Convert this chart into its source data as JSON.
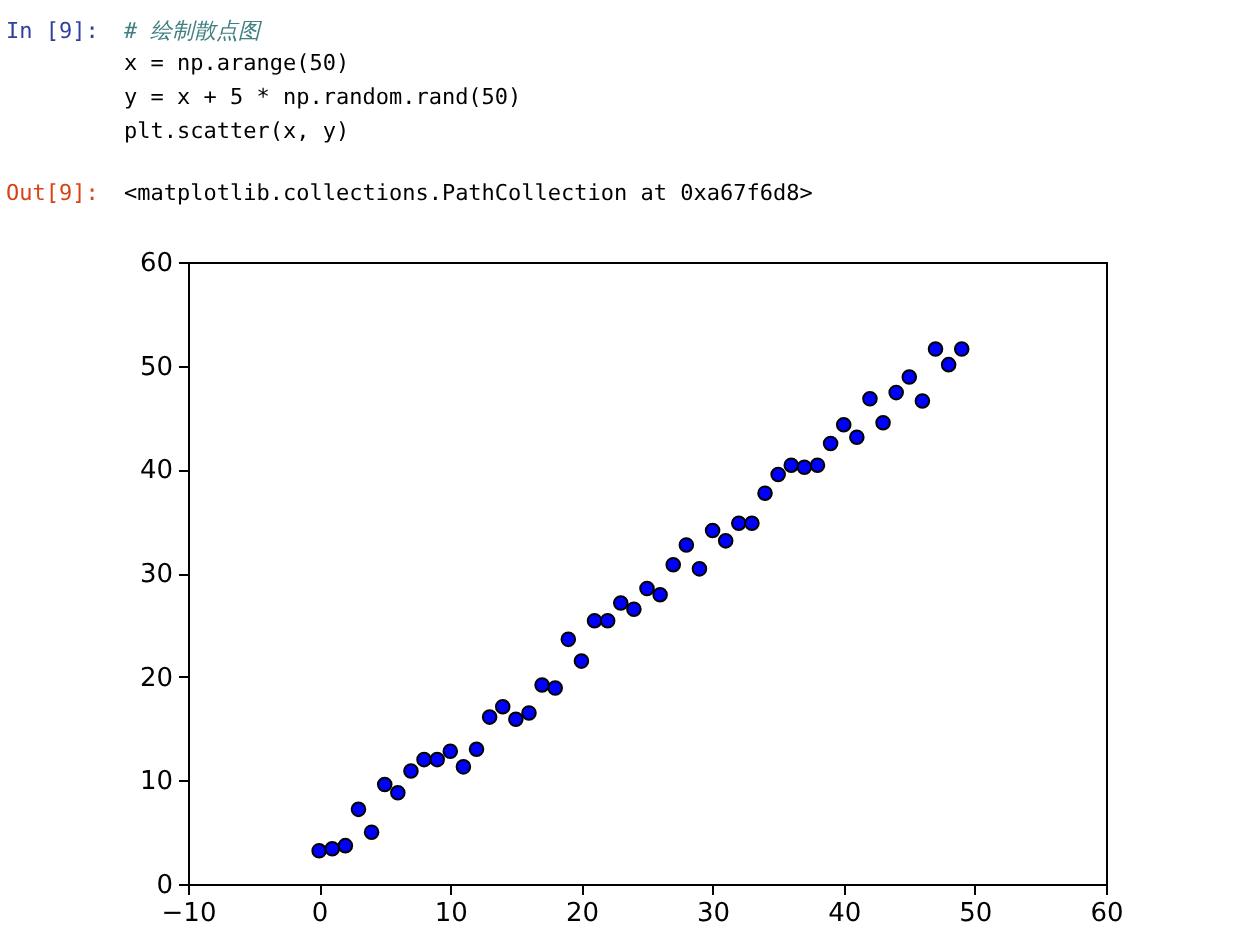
{
  "chart_data": {
    "type": "scatter",
    "annotations": [
      "In [9]:",
      "# 绘制散点图",
      "x = np.arange(50)",
      "y = x + 5 * np.random.rand(50)",
      "plt.scatter(x, y)",
      "Out[9]:",
      "<matplotlib.collections.PathCollection at 0xa67f6d8>"
    ],
    "x": [
      0,
      1,
      2,
      3,
      4,
      5,
      6,
      7,
      8,
      9,
      10,
      11,
      12,
      13,
      14,
      15,
      16,
      17,
      18,
      19,
      20,
      21,
      22,
      23,
      24,
      25,
      26,
      27,
      28,
      29,
      30,
      31,
      32,
      33,
      34,
      35,
      36,
      37,
      38,
      39,
      40,
      41,
      42,
      43,
      44,
      45,
      46,
      47,
      48,
      49
    ],
    "values": [
      3.2,
      3.4,
      3.7,
      7.2,
      5.0,
      9.6,
      8.8,
      10.9,
      12.0,
      12.0,
      12.8,
      11.3,
      13.0,
      16.1,
      17.1,
      15.9,
      16.5,
      19.2,
      18.9,
      23.6,
      21.5,
      25.4,
      25.4,
      27.1,
      26.5,
      28.5,
      27.9,
      30.8,
      32.7,
      30.4,
      34.1,
      33.1,
      34.8,
      34.8,
      37.7,
      39.5,
      40.4,
      40.2,
      40.4,
      42.5,
      44.3,
      43.1,
      46.8,
      44.5,
      47.4,
      48.9,
      46.6,
      51.6,
      50.1,
      51.6
    ],
    "color": "#0000ff",
    "marker": "circle",
    "xlim": [
      -10,
      60
    ],
    "xticks": [
      -10,
      0,
      10,
      20,
      30,
      40,
      50,
      60
    ],
    "ylim": [
      0,
      60
    ],
    "yticks": [
      0,
      10,
      20,
      30,
      40,
      50,
      60
    ],
    "grid": false
  }
}
